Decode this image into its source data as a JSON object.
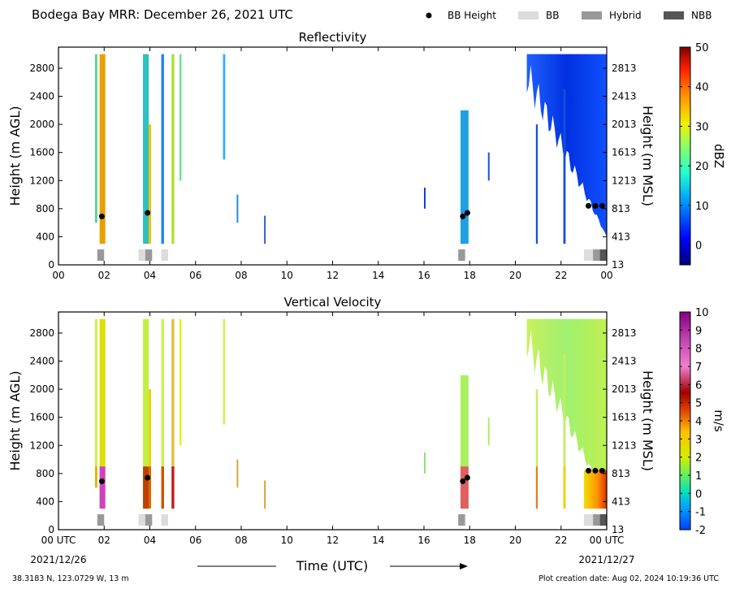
{
  "title": "Bodega Bay MRR:  December 26, 2021 UTC",
  "legend": [
    {
      "label": "BB Height",
      "kind": "dot",
      "color": "#000000"
    },
    {
      "label": "BB",
      "kind": "box",
      "color": "#dcdcdc"
    },
    {
      "label": "Hybrid",
      "kind": "box",
      "color": "#999999"
    },
    {
      "label": "NBB",
      "kind": "box",
      "color": "#555555"
    }
  ],
  "x_tick_labels": [
    "00",
    "02",
    "04",
    "06",
    "08",
    "10",
    "12",
    "14",
    "16",
    "18",
    "20",
    "22",
    "00"
  ],
  "x_tick_labels_bottom": [
    "00 UTC",
    "02",
    "04",
    "06",
    "08",
    "10",
    "12",
    "14",
    "16",
    "18",
    "20",
    "22",
    "00 UTC"
  ],
  "date_start": "2021/12/26",
  "date_end": "2021/12/27",
  "xlabel": "Time (UTC)",
  "footer_location": "38.3183 N, 123.0729 W, 13 m",
  "footer_date": "Plot creation date: Aug 02, 2024 10:19:36 UTC",
  "chart_data": [
    {
      "type": "heatmap",
      "title": "Reflectivity",
      "ylabel": "Height (m AGL)",
      "ylabel_right": "Height (m MSL)",
      "y_ticks": [
        "0",
        "400",
        "800",
        "1200",
        "1600",
        "2000",
        "2400",
        "2800"
      ],
      "y_ticks_right": [
        "13",
        "413",
        "813",
        "1213",
        "1613",
        "2013",
        "2413",
        "2813"
      ],
      "xlim": [
        0,
        24
      ],
      "ylim": [
        0,
        3100
      ],
      "colorbar": {
        "label": "dBZ",
        "ticks": [
          "0",
          "10",
          "20",
          "30",
          "40",
          "50"
        ],
        "range": [
          -5,
          50
        ]
      },
      "bb_height": [
        {
          "x": 1.9,
          "y": 690
        },
        {
          "x": 3.9,
          "y": 740
        },
        {
          "x": 17.7,
          "y": 690
        },
        {
          "x": 17.9,
          "y": 740
        },
        {
          "x": 23.2,
          "y": 840
        },
        {
          "x": 23.5,
          "y": 840
        },
        {
          "x": 23.8,
          "y": 840
        }
      ],
      "bb_type": [
        {
          "start": 1.7,
          "end": 2.0,
          "class": "Hybrid"
        },
        {
          "start": 3.5,
          "end": 3.8,
          "class": "BB"
        },
        {
          "start": 3.8,
          "end": 4.1,
          "class": "Hybrid"
        },
        {
          "start": 4.5,
          "end": 4.8,
          "class": "BB"
        },
        {
          "start": 17.5,
          "end": 17.8,
          "class": "Hybrid"
        },
        {
          "start": 23.0,
          "end": 23.4,
          "class": "BB"
        },
        {
          "start": 23.4,
          "end": 23.7,
          "class": "Hybrid"
        },
        {
          "start": 23.7,
          "end": 24.0,
          "class": "NBB"
        }
      ]
    },
    {
      "type": "heatmap",
      "title": "Vertical Velocity",
      "ylabel": "Height (m AGL)",
      "ylabel_right": "Height (m MSL)",
      "y_ticks": [
        "0",
        "400",
        "800",
        "1200",
        "1600",
        "2000",
        "2400",
        "2800"
      ],
      "y_ticks_right": [
        "13",
        "413",
        "813",
        "1213",
        "1613",
        "2013",
        "2413",
        "2813"
      ],
      "xlim": [
        0,
        24
      ],
      "ylim": [
        0,
        3100
      ],
      "colorbar": {
        "label": "m/s",
        "ticks": [
          "-2",
          "-1",
          "0",
          "1",
          "2",
          "3",
          "4",
          "5",
          "6",
          "7",
          "8",
          "9",
          "10"
        ],
        "range": [
          -2,
          10
        ]
      },
      "bb_height": [
        {
          "x": 1.9,
          "y": 690
        },
        {
          "x": 3.9,
          "y": 740
        },
        {
          "x": 17.7,
          "y": 690
        },
        {
          "x": 17.9,
          "y": 740
        },
        {
          "x": 23.2,
          "y": 840
        },
        {
          "x": 23.5,
          "y": 840
        },
        {
          "x": 23.8,
          "y": 840
        }
      ],
      "bb_type": [
        {
          "start": 1.7,
          "end": 2.0,
          "class": "Hybrid"
        },
        {
          "start": 3.5,
          "end": 3.8,
          "class": "BB"
        },
        {
          "start": 3.8,
          "end": 4.1,
          "class": "Hybrid"
        },
        {
          "start": 4.5,
          "end": 4.8,
          "class": "BB"
        },
        {
          "start": 17.5,
          "end": 17.8,
          "class": "Hybrid"
        },
        {
          "start": 23.0,
          "end": 23.4,
          "class": "BB"
        },
        {
          "start": 23.4,
          "end": 23.7,
          "class": "Hybrid"
        },
        {
          "start": 23.7,
          "end": 24.0,
          "class": "NBB"
        }
      ]
    }
  ],
  "streaks": [
    {
      "x": 1.8,
      "w": 0.25,
      "bot": 300,
      "top": 3000,
      "z": "#e8a000",
      "v": "#dde000",
      "vlow": "#d040c0"
    },
    {
      "x": 1.6,
      "w": 0.1,
      "bot": 600,
      "top": 3000,
      "z": "#50d890",
      "v": "#c8f040",
      "vlow": "#e8b000"
    },
    {
      "x": 3.7,
      "w": 0.25,
      "bot": 300,
      "top": 3000,
      "z": "#30c0c0",
      "v": "#c0f040",
      "vlow": "#c04000"
    },
    {
      "x": 3.95,
      "w": 0.1,
      "bot": 300,
      "top": 2000,
      "z": "#f0c000",
      "v": "#e8d000",
      "vlow": "#e06000"
    },
    {
      "x": 4.5,
      "w": 0.12,
      "bot": 300,
      "top": 3000,
      "z": "#2080ff",
      "v": "#c8f050",
      "vlow": "#d05000"
    },
    {
      "x": 4.95,
      "w": 0.12,
      "bot": 300,
      "top": 3000,
      "z": "#b0e030",
      "v": "#e0c040",
      "vlow": "#c02020"
    },
    {
      "x": 5.3,
      "w": 0.08,
      "bot": 1200,
      "top": 3000,
      "z": "#60e080",
      "v": "#e8f000",
      "vlow": "#e8f000"
    },
    {
      "x": 7.2,
      "w": 0.1,
      "bot": 1500,
      "top": 3000,
      "z": "#30b0ff",
      "v": "#d0f060",
      "vlow": "#d0f060"
    },
    {
      "x": 7.8,
      "w": 0.04,
      "bot": 600,
      "top": 1000,
      "z": "#2090d0",
      "v": "#d0b040",
      "vlow": "#d0b040"
    },
    {
      "x": 9.0,
      "w": 0.05,
      "bot": 300,
      "top": 700,
      "z": "#3060c0",
      "v": "#e0a030",
      "vlow": "#e0a030"
    },
    {
      "x": 16.0,
      "w": 0.06,
      "bot": 800,
      "top": 1100,
      "z": "#1040e0",
      "v": "#90e080",
      "vlow": "#90e080"
    },
    {
      "x": 17.6,
      "w": 0.35,
      "bot": 300,
      "top": 2200,
      "z": "#20a0e0",
      "v": "#a8f060",
      "vlow": "#e06060"
    },
    {
      "x": 18.8,
      "w": 0.06,
      "bot": 1200,
      "top": 1600,
      "z": "#2050e0",
      "v": "#b0f060",
      "vlow": "#b0f060"
    },
    {
      "x": 20.9,
      "w": 0.08,
      "bot": 300,
      "top": 2000,
      "z": "#1050e0",
      "v": "#c0f060",
      "vlow": "#e08020"
    },
    {
      "x": 22.1,
      "w": 0.1,
      "bot": 300,
      "top": 2500,
      "z": "#1050e0",
      "v": "#c0f060",
      "vlow": "#f0d000"
    }
  ]
}
